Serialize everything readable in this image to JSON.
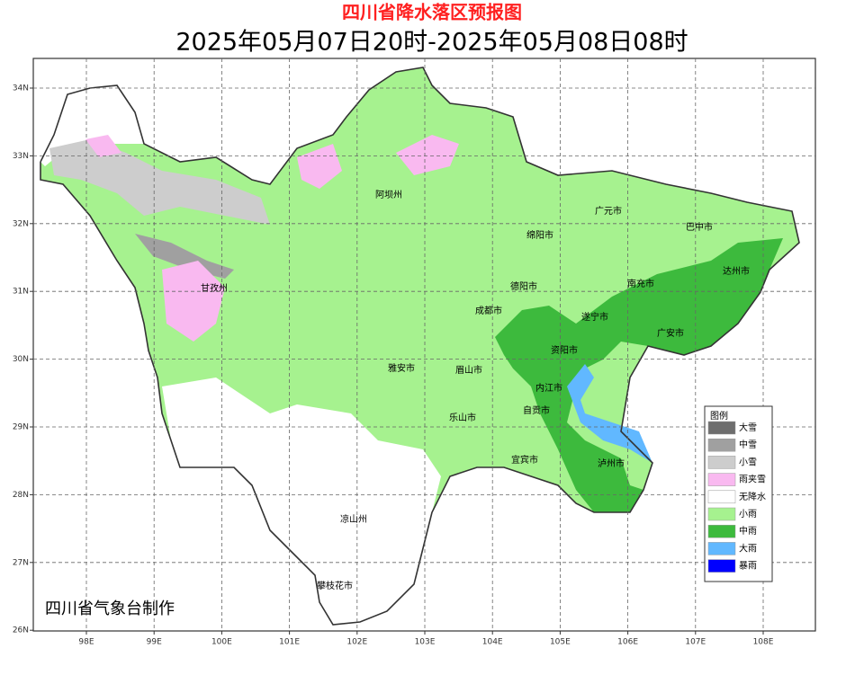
{
  "title": "四川省降水落区预报图",
  "subtitle": "2025年05月07日20时-2025年05月08日08时",
  "map": {
    "lat_ticks": [
      "34N",
      "33N",
      "32N",
      "31N",
      "30N",
      "29N",
      "28N",
      "27N",
      "26N"
    ],
    "lon_ticks": [
      "98E",
      "99E",
      "100E",
      "101E",
      "102E",
      "103E",
      "104E",
      "105E",
      "106E",
      "107E",
      "108E"
    ],
    "places": [
      "阿坝州",
      "广元市",
      "巴中市",
      "绵阳市",
      "达州市",
      "甘孜州",
      "德阳市",
      "南充市",
      "成都市",
      "遂宁市",
      "广安市",
      "资阳市",
      "雅安市",
      "眉山市",
      "内江市",
      "乐山市",
      "自贡市",
      "宜宾市",
      "泸州市",
      "凉山州",
      "攀枝花市"
    ]
  },
  "legend": {
    "title": "图例",
    "items": [
      {
        "label": "大雪",
        "color": "#6e6e6e"
      },
      {
        "label": "中雪",
        "color": "#a0a0a0"
      },
      {
        "label": "小雪",
        "color": "#cdcdcd"
      },
      {
        "label": "雨夹雪",
        "color": "#f9b9f0"
      },
      {
        "label": "无降水",
        "color": "#ffffff"
      },
      {
        "label": "小雨",
        "color": "#a6f28f"
      },
      {
        "label": "中雨",
        "color": "#3dba3d"
      },
      {
        "label": "大雨",
        "color": "#61b8ff"
      },
      {
        "label": "暴雨",
        "color": "#0000ff"
      }
    ]
  },
  "credit": "四川省气象台制作"
}
